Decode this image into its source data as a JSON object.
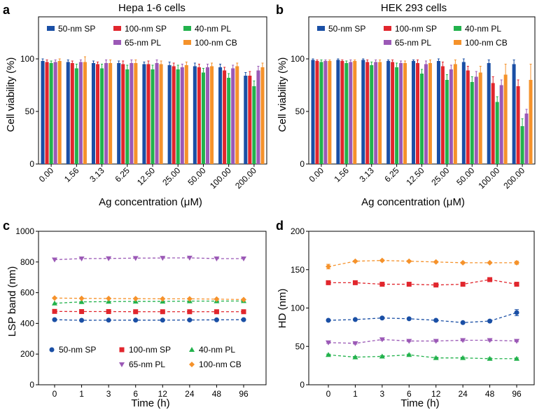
{
  "figure_labels": [
    "a",
    "b",
    "c",
    "d"
  ],
  "chart_data": [
    {
      "panel": "a",
      "type": "bar",
      "title": "Hepa 1-6 cells",
      "xlabel": "Ag concentration (μM)",
      "ylabel": "Cell viability (%)",
      "ylim": [
        0,
        140
      ],
      "yticks": [
        0,
        50,
        100
      ],
      "categories": [
        "0.00",
        "1.56",
        "3.13",
        "6.25",
        "12.50",
        "25.00",
        "50.00",
        "100.00",
        "200.00"
      ],
      "series": [
        {
          "name": "50-nm SP",
          "color": "#1a4fa5",
          "values": [
            98,
            97,
            96,
            96,
            95,
            94,
            93,
            92,
            84
          ],
          "errors": [
            2,
            2,
            2,
            2,
            2,
            3,
            3,
            3,
            3
          ]
        },
        {
          "name": "100-nm SP",
          "color": "#e1262d",
          "values": [
            97,
            96,
            95,
            95,
            95,
            93,
            92,
            89,
            84
          ],
          "errors": [
            2,
            2,
            2,
            3,
            3,
            3,
            3,
            3,
            4
          ]
        },
        {
          "name": "40-nm PL",
          "color": "#22b24c",
          "values": [
            96,
            91,
            91,
            90,
            90,
            90,
            87,
            82,
            74
          ],
          "errors": [
            2,
            4,
            4,
            4,
            4,
            4,
            4,
            4,
            5
          ]
        },
        {
          "name": "65-nm PL",
          "color": "#9b59b6",
          "values": [
            97,
            97,
            96,
            96,
            96,
            92,
            92,
            91,
            89
          ],
          "errors": [
            2,
            2,
            3,
            3,
            3,
            3,
            3,
            3,
            4
          ]
        },
        {
          "name": "100-nm CB",
          "color": "#f5922b",
          "values": [
            98,
            97,
            96,
            96,
            95,
            94,
            93,
            93,
            92
          ],
          "errors": [
            2,
            5,
            3,
            3,
            3,
            3,
            3,
            3,
            4
          ]
        }
      ],
      "legend": "top"
    },
    {
      "panel": "b",
      "type": "bar",
      "title": "HEK 293 cells",
      "xlabel": "Ag concentration (μM)",
      "ylabel": "Cell viability (%)",
      "ylim": [
        0,
        140
      ],
      "yticks": [
        0,
        50,
        100
      ],
      "categories": [
        "0.00",
        "1.56",
        "3.13",
        "6.25",
        "12.50",
        "25.00",
        "50.00",
        "100.00",
        "200.00"
      ],
      "series": [
        {
          "name": "50-nm SP",
          "color": "#1a4fa5",
          "values": [
            99,
            99,
            99,
            98,
            98,
            98,
            97,
            96,
            95
          ],
          "errors": [
            1,
            1,
            1,
            1,
            1,
            2,
            3,
            3,
            4
          ]
        },
        {
          "name": "100-nm SP",
          "color": "#e1262d",
          "values": [
            98,
            98,
            97,
            97,
            96,
            93,
            89,
            77,
            74
          ],
          "errors": [
            1,
            1,
            2,
            2,
            3,
            4,
            4,
            6,
            6
          ]
        },
        {
          "name": "40-nm PL",
          "color": "#22b24c",
          "values": [
            97,
            96,
            94,
            92,
            86,
            80,
            78,
            59,
            36
          ],
          "errors": [
            2,
            2,
            3,
            4,
            4,
            5,
            5,
            5,
            7
          ]
        },
        {
          "name": "65-nm PL",
          "color": "#9b59b6",
          "values": [
            98,
            97,
            97,
            96,
            95,
            90,
            83,
            75,
            48
          ],
          "errors": [
            1,
            2,
            2,
            2,
            3,
            4,
            5,
            5,
            4
          ]
        },
        {
          "name": "100-nm CB",
          "color": "#f5922b",
          "values": [
            98,
            98,
            97,
            96,
            96,
            95,
            87,
            85,
            80
          ],
          "errors": [
            1,
            1,
            2,
            2,
            3,
            4,
            6,
            10,
            15
          ]
        }
      ],
      "legend": "top"
    },
    {
      "panel": "c",
      "type": "line",
      "xlabel": "Time (h)",
      "ylabel": "LSP band (nm)",
      "ylim": [
        0,
        1000
      ],
      "yticks": [
        0,
        200,
        400,
        600,
        800,
        1000
      ],
      "categories": [
        "0",
        "1",
        "3",
        "6",
        "12",
        "24",
        "48",
        "96"
      ],
      "series": [
        {
          "name": "50-nm SP",
          "color": "#1a4fa5",
          "marker": "circle",
          "values": [
            424,
            420,
            421,
            421,
            421,
            422,
            423,
            424
          ]
        },
        {
          "name": "100-nm SP",
          "color": "#e1262d",
          "marker": "square",
          "values": [
            478,
            477,
            477,
            476,
            476,
            476,
            476,
            476
          ]
        },
        {
          "name": "40-nm PL",
          "color": "#22b24c",
          "marker": "triangle-up",
          "values": [
            531,
            540,
            542,
            543,
            543,
            545,
            545,
            546
          ]
        },
        {
          "name": "65-nm PL",
          "color": "#9b59b6",
          "marker": "triangle-down",
          "values": [
            815,
            822,
            823,
            825,
            826,
            827,
            822,
            822
          ]
        },
        {
          "name": "100-nm CB",
          "color": "#f5922b",
          "marker": "diamond",
          "values": [
            565,
            563,
            562,
            561,
            560,
            560,
            558,
            555
          ]
        }
      ],
      "legend": "bottom"
    },
    {
      "panel": "d",
      "type": "line",
      "xlabel": "Time (h)",
      "ylabel": "HD (nm)",
      "ylim": [
        0,
        200
      ],
      "yticks": [
        0,
        50,
        100,
        150,
        200
      ],
      "categories": [
        "0",
        "1",
        "3",
        "6",
        "12",
        "24",
        "48",
        "96"
      ],
      "series": [
        {
          "name": "100-nm CB",
          "color": "#f5922b",
          "marker": "diamond",
          "values": [
            154,
            161,
            162,
            161,
            160,
            159,
            159,
            159
          ],
          "errors": [
            3,
            1,
            1,
            1,
            1,
            1,
            1,
            2
          ]
        },
        {
          "name": "100-nm SP",
          "color": "#e1262d",
          "marker": "square",
          "values": [
            133,
            133,
            131,
            131,
            130,
            131,
            137,
            131
          ],
          "errors": [
            1,
            1,
            1,
            1,
            1,
            1,
            1,
            1
          ]
        },
        {
          "name": "50-nm SP",
          "color": "#1a4fa5",
          "marker": "circle",
          "values": [
            84,
            85,
            87,
            86,
            84,
            81,
            83,
            94
          ],
          "errors": [
            1,
            1,
            1,
            1,
            1,
            1,
            1,
            4
          ]
        },
        {
          "name": "65-nm PL",
          "color": "#9b59b6",
          "marker": "triangle-down",
          "values": [
            55,
            54,
            59,
            57,
            57,
            58,
            58,
            57
          ],
          "errors": [
            1,
            1,
            1,
            1,
            1,
            1,
            1,
            1
          ]
        },
        {
          "name": "40-nm PL",
          "color": "#22b24c",
          "marker": "triangle-up",
          "values": [
            39,
            36,
            37,
            39,
            35,
            35,
            34,
            34
          ],
          "errors": [
            1,
            1,
            1,
            1,
            1,
            1,
            1,
            1
          ]
        }
      ]
    }
  ]
}
